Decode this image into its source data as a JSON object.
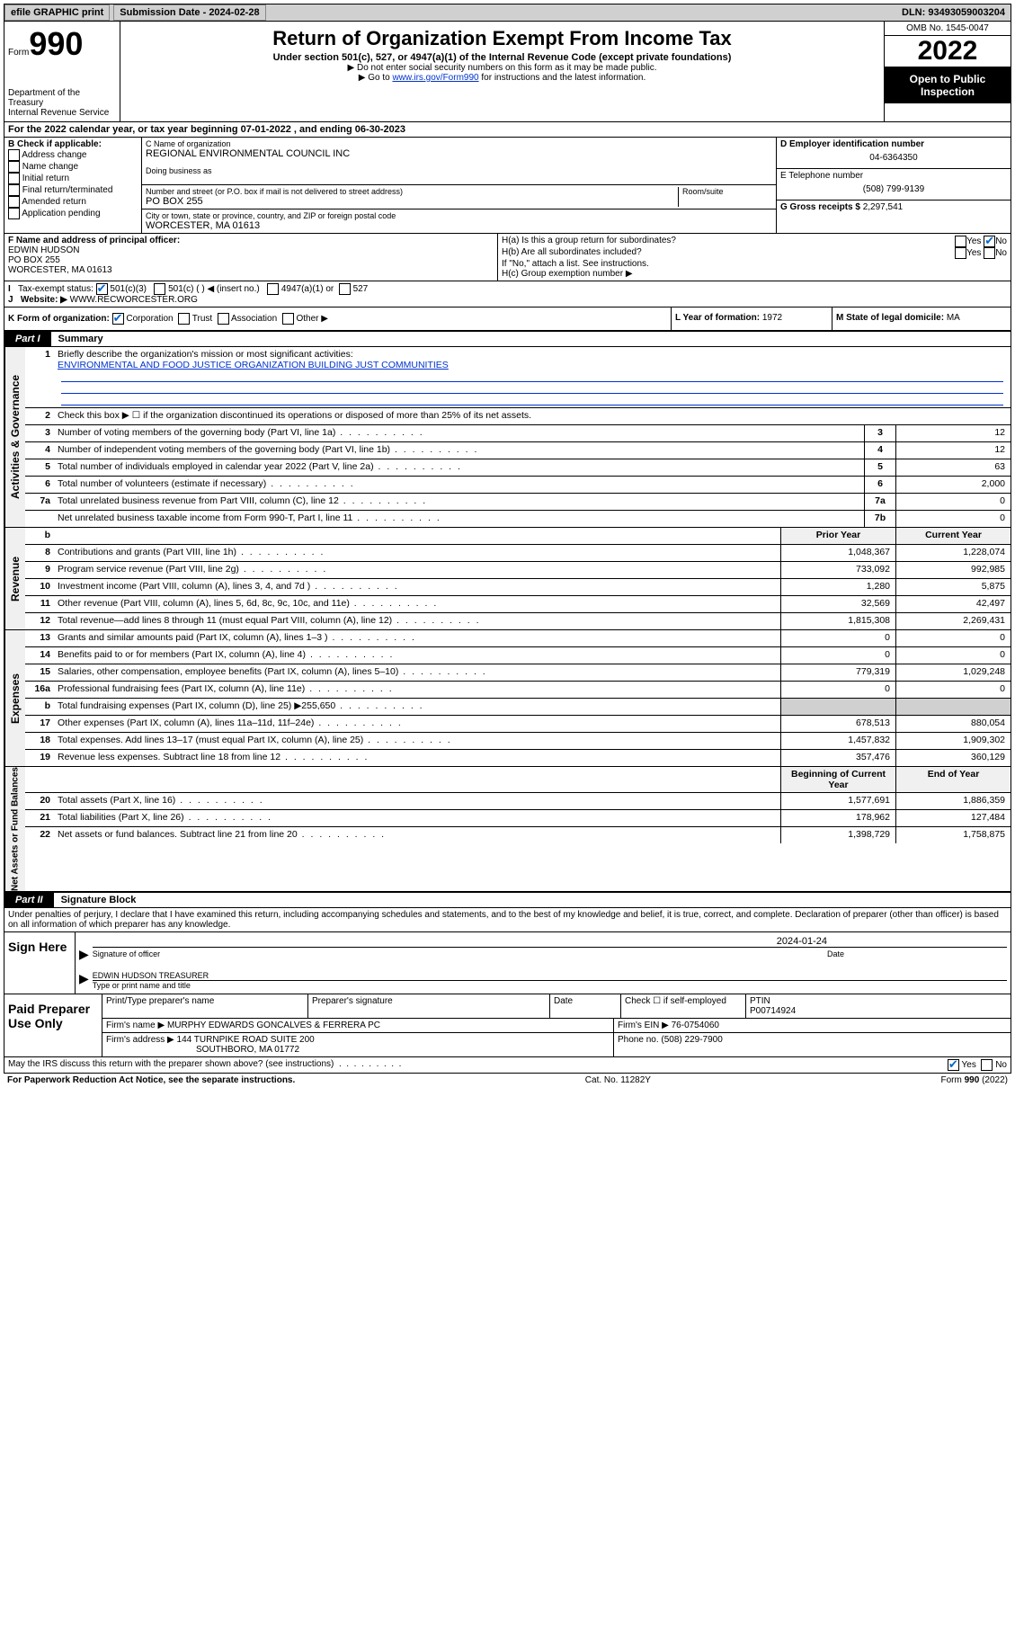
{
  "topbar": {
    "efile": "efile GRAPHIC print",
    "submission_label": "Submission Date - 2024-02-28",
    "dln_label": "DLN: 93493059003204"
  },
  "header": {
    "form_word": "Form",
    "form_num": "990",
    "dept": "Department of the Treasury\nInternal Revenue Service",
    "title": "Return of Organization Exempt From Income Tax",
    "sub": "Under section 501(c), 527, or 4947(a)(1) of the Internal Revenue Code (except private foundations)",
    "note1": "▶ Do not enter social security numbers on this form as it may be made public.",
    "note2_pre": "▶ Go to ",
    "note2_link": "www.irs.gov/Form990",
    "note2_post": " for instructions and the latest information.",
    "omb": "OMB No. 1545-0047",
    "year": "2022",
    "open": "Open to Public Inspection"
  },
  "lineA": "For the 2022 calendar year, or tax year beginning 07-01-2022    , and ending 06-30-2023",
  "boxB": {
    "heading": "B Check if applicable:",
    "items": [
      "Address change",
      "Name change",
      "Initial return",
      "Final return/terminated",
      "Amended return",
      "Application pending"
    ]
  },
  "boxC": {
    "name_lbl": "C Name of organization",
    "name": "REGIONAL ENVIRONMENTAL COUNCIL INC",
    "dba_lbl": "Doing business as",
    "addr_lbl": "Number and street (or P.O. box if mail is not delivered to street address)",
    "room_lbl": "Room/suite",
    "addr": "PO BOX 255",
    "city_lbl": "City or town, state or province, country, and ZIP or foreign postal code",
    "city": "WORCESTER, MA  01613"
  },
  "boxD": {
    "lbl": "D Employer identification number",
    "val": "04-6364350"
  },
  "boxE": {
    "lbl": "E Telephone number",
    "val": "(508) 799-9139"
  },
  "boxG": {
    "lbl": "G Gross receipts $",
    "val": "2,297,541"
  },
  "lineF": {
    "lbl": "F Name and address of principal officer:",
    "name": "EDWIN HUDSON",
    "addr1": "PO BOX 255",
    "addr2": "WORCESTER, MA  01613"
  },
  "lineH": {
    "ha": "H(a)  Is this a group return for subordinates?",
    "hb": "H(b)  Are all subordinates included?",
    "hb_note": "If \"No,\" attach a list. See instructions.",
    "hc": "H(c)  Group exemption number ▶"
  },
  "lineI": {
    "lbl": "Tax-exempt status:",
    "o1": "501(c)(3)",
    "o2": "501(c) (   ) ◀ (insert no.)",
    "o3": "4947(a)(1) or",
    "o4": "527"
  },
  "lineJ": {
    "lbl": "Website: ▶",
    "val": "WWW.RECWORCESTER.ORG"
  },
  "lineK": {
    "lbl": "K Form of organization:",
    "corp": "Corporation",
    "trust": "Trust",
    "assoc": "Association",
    "other": "Other ▶"
  },
  "lineL": {
    "lbl": "L Year of formation:",
    "val": "1972"
  },
  "lineM": {
    "lbl": "M State of legal domicile:",
    "val": "MA"
  },
  "partI": {
    "tab": "Part I",
    "title": "Summary",
    "q1_lbl": "1",
    "q1": "Briefly describe the organization's mission or most significant activities:",
    "q1_val": "ENVIRONMENTAL AND FOOD JUSTICE ORGANIZATION BUILDING JUST COMMUNITIES",
    "q2_lbl": "2",
    "q2": "Check this box ▶ ☐  if the organization discontinued its operations or disposed of more than 25% of its net assets.",
    "rows_ag": [
      {
        "n": "3",
        "t": "Number of voting members of the governing body (Part VI, line 1a)",
        "b": "3",
        "v": "12"
      },
      {
        "n": "4",
        "t": "Number of independent voting members of the governing body (Part VI, line 1b)",
        "b": "4",
        "v": "12"
      },
      {
        "n": "5",
        "t": "Total number of individuals employed in calendar year 2022 (Part V, line 2a)",
        "b": "5",
        "v": "63"
      },
      {
        "n": "6",
        "t": "Total number of volunteers (estimate if necessary)",
        "b": "6",
        "v": "2,000"
      },
      {
        "n": "7a",
        "t": "Total unrelated business revenue from Part VIII, column (C), line 12",
        "b": "7a",
        "v": "0"
      },
      {
        "n": "",
        "t": "Net unrelated business taxable income from Form 990-T, Part I, line 11",
        "b": "7b",
        "v": "0"
      }
    ],
    "hdr_b": "b",
    "col_prior": "Prior Year",
    "col_current": "Current Year",
    "rows_rev": [
      {
        "n": "8",
        "t": "Contributions and grants (Part VIII, line 1h)",
        "p": "1,048,367",
        "c": "1,228,074"
      },
      {
        "n": "9",
        "t": "Program service revenue (Part VIII, line 2g)",
        "p": "733,092",
        "c": "992,985"
      },
      {
        "n": "10",
        "t": "Investment income (Part VIII, column (A), lines 3, 4, and 7d )",
        "p": "1,280",
        "c": "5,875"
      },
      {
        "n": "11",
        "t": "Other revenue (Part VIII, column (A), lines 5, 6d, 8c, 9c, 10c, and 11e)",
        "p": "32,569",
        "c": "42,497"
      },
      {
        "n": "12",
        "t": "Total revenue—add lines 8 through 11 (must equal Part VIII, column (A), line 12)",
        "p": "1,815,308",
        "c": "2,269,431"
      }
    ],
    "rows_exp": [
      {
        "n": "13",
        "t": "Grants and similar amounts paid (Part IX, column (A), lines 1–3 )",
        "p": "0",
        "c": "0"
      },
      {
        "n": "14",
        "t": "Benefits paid to or for members (Part IX, column (A), line 4)",
        "p": "0",
        "c": "0"
      },
      {
        "n": "15",
        "t": "Salaries, other compensation, employee benefits (Part IX, column (A), lines 5–10)",
        "p": "779,319",
        "c": "1,029,248"
      },
      {
        "n": "16a",
        "t": "Professional fundraising fees (Part IX, column (A), line 11e)",
        "p": "0",
        "c": "0"
      },
      {
        "n": "b",
        "t": "Total fundraising expenses (Part IX, column (D), line 25) ▶255,650",
        "p": "",
        "c": "",
        "shade": true
      },
      {
        "n": "17",
        "t": "Other expenses (Part IX, column (A), lines 11a–11d, 11f–24e)",
        "p": "678,513",
        "c": "880,054"
      },
      {
        "n": "18",
        "t": "Total expenses. Add lines 13–17 (must equal Part IX, column (A), line 25)",
        "p": "1,457,832",
        "c": "1,909,302"
      },
      {
        "n": "19",
        "t": "Revenue less expenses. Subtract line 18 from line 12",
        "p": "357,476",
        "c": "360,129"
      }
    ],
    "col_begin": "Beginning of Current Year",
    "col_end": "End of Year",
    "rows_na": [
      {
        "n": "20",
        "t": "Total assets (Part X, line 16)",
        "p": "1,577,691",
        "c": "1,886,359"
      },
      {
        "n": "21",
        "t": "Total liabilities (Part X, line 26)",
        "p": "178,962",
        "c": "127,484"
      },
      {
        "n": "22",
        "t": "Net assets or fund balances. Subtract line 21 from line 20",
        "p": "1,398,729",
        "c": "1,758,875"
      }
    ],
    "lbl_ag": "Activities & Governance",
    "lbl_rev": "Revenue",
    "lbl_exp": "Expenses",
    "lbl_na": "Net Assets or Fund Balances"
  },
  "partII": {
    "tab": "Part II",
    "title": "Signature Block",
    "decl": "Under penalties of perjury, I declare that I have examined this return, including accompanying schedules and statements, and to the best of my knowledge and belief, it is true, correct, and complete. Declaration of preparer (other than officer) is based on all information of which preparer has any knowledge.",
    "sign_here": "Sign Here",
    "sig_officer": "Signature of officer",
    "sig_date": "Date",
    "sig_date_val": "2024-01-24",
    "name_title": "EDWIN HUDSON  TREASURER",
    "name_title_lbl": "Type or print name and title",
    "paid": "Paid Preparer Use Only",
    "h_name": "Print/Type preparer's name",
    "h_sig": "Preparer's signature",
    "h_date": "Date",
    "h_check": "Check ☐ if self-employed",
    "h_ptin_lbl": "PTIN",
    "h_ptin": "P00714924",
    "firm_name_lbl": "Firm's name    ▶",
    "firm_name": "MURPHY EDWARDS GONCALVES & FERRERA PC",
    "firm_ein_lbl": "Firm's EIN ▶",
    "firm_ein": "76-0754060",
    "firm_addr_lbl": "Firm's address ▶",
    "firm_addr1": "144 TURNPIKE ROAD SUITE 200",
    "firm_addr2": "SOUTHBORO, MA  01772",
    "phone_lbl": "Phone no.",
    "phone": "(508) 229-7900",
    "discuss": "May the IRS discuss this return with the preparer shown above? (see instructions)"
  },
  "footer": {
    "left": "For Paperwork Reduction Act Notice, see the separate instructions.",
    "mid": "Cat. No. 11282Y",
    "right": "Form 990 (2022)"
  },
  "yes": "Yes",
  "no": "No"
}
